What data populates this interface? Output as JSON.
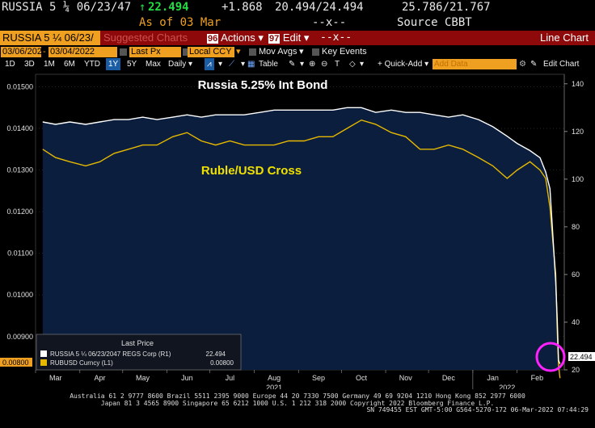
{
  "quote": {
    "ticker": "RUSSIA 5 ¼ 06/23/47",
    "arrow": "↑",
    "last": "22.494",
    "change": "+1.868",
    "bid_ask": "20.494/24.494",
    "hi_lo": "25.786/21.767",
    "as_of": "As of 03 Mar",
    "dashes": "--x--",
    "source": "Source CBBT"
  },
  "toolbar": {
    "security_field": "RUSSIA 5 ¼ 06/23/",
    "suggested": "Suggested Charts",
    "actions_num": "96",
    "actions_label": "Actions ▾",
    "edit_num": "97",
    "edit_label": "Edit ▾",
    "dashes": "--x--",
    "window_title": "Line Chart"
  },
  "range": {
    "start": "03/06/2021",
    "end": "03/04/2022",
    "field": "Last Px",
    "currency": "Local CCY",
    "mov_avgs": "Mov Avgs",
    "key_events": "Key Events"
  },
  "periods": [
    "1D",
    "3D",
    "1M",
    "6M",
    "YTD",
    "1Y",
    "5Y",
    "Max"
  ],
  "selected_period": "1Y",
  "controls": {
    "frequency": "Daily ▾",
    "table": "Table",
    "quick_add": "+ Quick-Add ▾",
    "add_data": "Add Data",
    "edit_chart": "Edit Chart"
  },
  "colors": {
    "bond": "#ffffff",
    "ruble": "#e6b800",
    "fill": "#0b1e3d",
    "accent": "#f0a020",
    "highlight": "#ff22ff"
  },
  "chart_data": {
    "type": "line",
    "annotations": [
      "Russia 5.25% Int Bond",
      "Ruble/USD Cross"
    ],
    "x_tick_labels": [
      "Mar",
      "Apr",
      "May",
      "Jun",
      "Jul",
      "Aug",
      "Sep",
      "Oct",
      "Nov",
      "Dec",
      "Jan",
      "Feb"
    ],
    "year_labels": [
      "2021",
      "2022"
    ],
    "y_left_ticks": [
      "0.01500",
      "0.01400",
      "0.01300",
      "0.01200",
      "0.01100",
      "0.01000",
      "0.00900"
    ],
    "y_left_range": [
      0.0082,
      0.0153
    ],
    "y_right_ticks": [
      "140",
      "120",
      "100",
      "80",
      "60",
      "40",
      "20"
    ],
    "y_right_range": [
      20,
      144
    ],
    "legend_header": "Last Price",
    "series": [
      {
        "name": "RUSSIA 5 ¼ 06/23/2047 REGS Corp (R1)",
        "axis": "right",
        "color": "#ffffff",
        "last_value": "22.494",
        "x": [
          "2021-03-06",
          "2021-03-15",
          "2021-03-25",
          "2021-04-05",
          "2021-04-15",
          "2021-04-25",
          "2021-05-05",
          "2021-05-15",
          "2021-05-25",
          "2021-06-05",
          "2021-06-15",
          "2021-06-25",
          "2021-07-05",
          "2021-07-15",
          "2021-07-25",
          "2021-08-05",
          "2021-08-15",
          "2021-08-25",
          "2021-09-05",
          "2021-09-15",
          "2021-09-25",
          "2021-10-05",
          "2021-10-15",
          "2021-10-25",
          "2021-11-05",
          "2021-11-15",
          "2021-11-25",
          "2021-12-05",
          "2021-12-15",
          "2021-12-25",
          "2022-01-05",
          "2022-01-15",
          "2022-01-25",
          "2022-02-01",
          "2022-02-10",
          "2022-02-17",
          "2022-02-21",
          "2022-02-24",
          "2022-02-28",
          "2022-03-01",
          "2022-03-02",
          "2022-03-03"
        ],
        "values": [
          124,
          123,
          124,
          123,
          124,
          125,
          125,
          126,
          125,
          126,
          127,
          126,
          127,
          127,
          127,
          128,
          129,
          129,
          129,
          129,
          129,
          130,
          130,
          128,
          129,
          128,
          128,
          127,
          126,
          127,
          125,
          122,
          118,
          115,
          112,
          109,
          103,
          96,
          57,
          42,
          24,
          22.5
        ]
      },
      {
        "name": "RUBUSD Curncy (L1)",
        "axis": "left",
        "color": "#e6b800",
        "last_value": "0.00800",
        "x": [
          "2021-03-06",
          "2021-03-15",
          "2021-03-25",
          "2021-04-05",
          "2021-04-15",
          "2021-04-25",
          "2021-05-05",
          "2021-05-15",
          "2021-05-25",
          "2021-06-05",
          "2021-06-15",
          "2021-06-25",
          "2021-07-05",
          "2021-07-15",
          "2021-07-25",
          "2021-08-05",
          "2021-08-15",
          "2021-08-25",
          "2021-09-05",
          "2021-09-15",
          "2021-09-25",
          "2021-10-05",
          "2021-10-15",
          "2021-10-25",
          "2021-11-05",
          "2021-11-15",
          "2021-11-25",
          "2021-12-05",
          "2021-12-15",
          "2021-12-25",
          "2022-01-05",
          "2022-01-15",
          "2022-01-25",
          "2022-02-01",
          "2022-02-10",
          "2022-02-17",
          "2022-02-21",
          "2022-02-24",
          "2022-02-28",
          "2022-03-01",
          "2022-03-02",
          "2022-03-03"
        ],
        "values": [
          0.0135,
          0.0133,
          0.0132,
          0.0131,
          0.0132,
          0.0134,
          0.0135,
          0.0136,
          0.0136,
          0.0138,
          0.0139,
          0.0137,
          0.0136,
          0.0137,
          0.0136,
          0.0136,
          0.0136,
          0.0137,
          0.0137,
          0.0138,
          0.0138,
          0.014,
          0.0142,
          0.0141,
          0.0139,
          0.0138,
          0.0135,
          0.0135,
          0.0136,
          0.0135,
          0.0133,
          0.0131,
          0.0128,
          0.013,
          0.0132,
          0.013,
          0.0128,
          0.0121,
          0.0105,
          0.0092,
          0.0083,
          0.008
        ]
      }
    ]
  },
  "footer": {
    "line1": "Australia 61 2 9777 8600 Brazil 5511 2395 9000 Europe 44 20 7330 7500 Germany 49 69 9204 1210 Hong Kong 852 2977 6000",
    "line2": "Japan 81 3 4565 8900      Singapore 65 6212 1000      U.S. 1 212 318 2000      Copyright 2022 Bloomberg Finance L.P.",
    "line3": "SN 749455 EST  GMT-5:00 G564-5270-172 06-Mar-2022 07:44:29"
  }
}
